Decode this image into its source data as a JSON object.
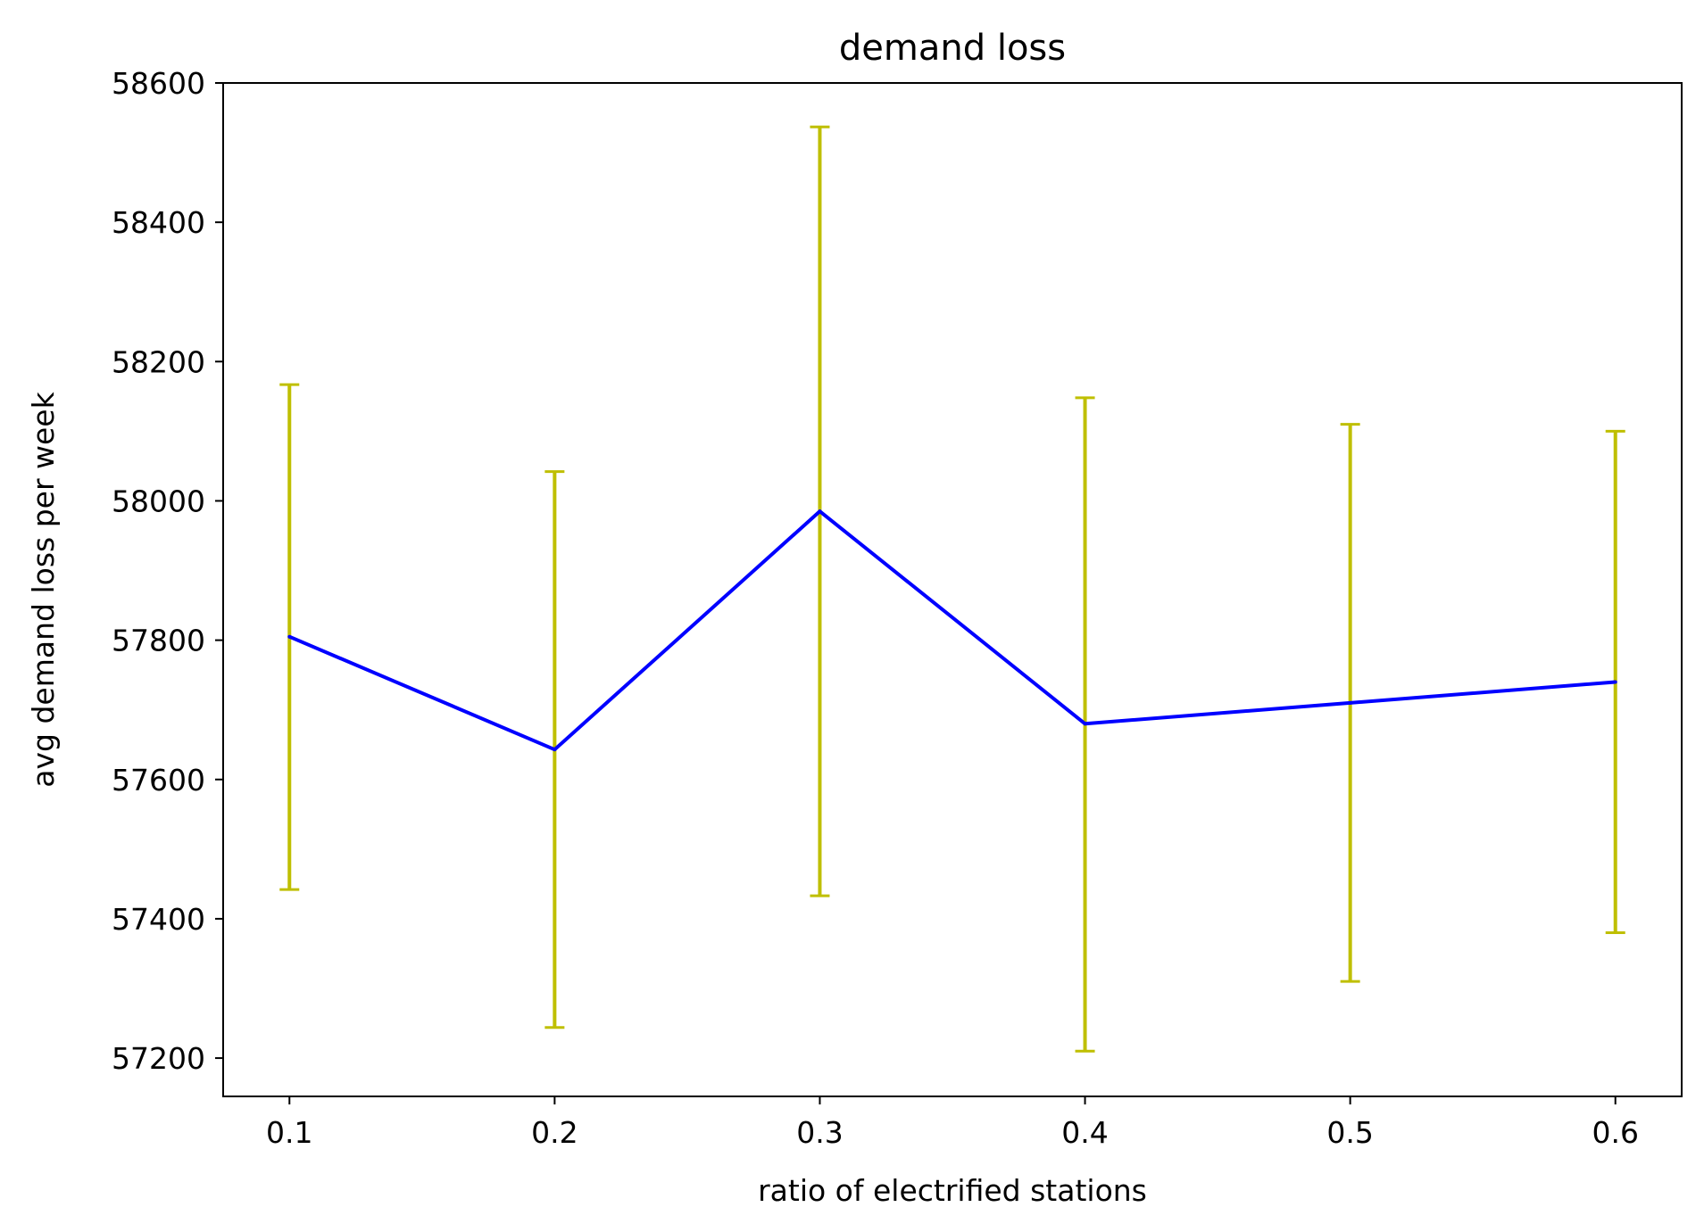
{
  "chart_data": {
    "type": "line",
    "title": "demand loss",
    "xlabel": "ratio of electrified stations",
    "ylabel": "avg demand loss per week",
    "xlim": [
      0.075,
      0.625
    ],
    "ylim": [
      57145,
      58600
    ],
    "x_ticks": [
      "0.1",
      "0.2",
      "0.3",
      "0.4",
      "0.5",
      "0.6"
    ],
    "y_ticks": [
      "57200",
      "57400",
      "57600",
      "57800",
      "58000",
      "58200",
      "58400",
      "58600"
    ],
    "grid": false,
    "legend": "none",
    "series": [
      {
        "x": [
          0.1,
          0.2,
          0.3,
          0.4,
          0.5,
          0.6
        ],
        "y": [
          57805,
          57643,
          57985,
          57680,
          57710,
          57740
        ],
        "error_low": [
          57442,
          57244,
          57433,
          57210,
          57310,
          57380
        ],
        "error_high": [
          58167,
          58042,
          58537,
          58148,
          58110,
          58100
        ],
        "line_color": "#0000ff",
        "error_color": "#bfbf00"
      }
    ]
  }
}
